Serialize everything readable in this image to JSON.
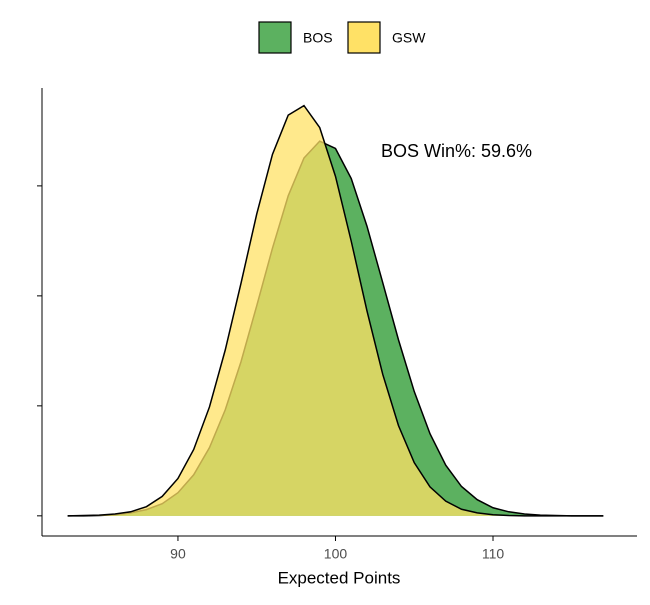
{
  "chart_data": {
    "type": "density",
    "x_label": "Expected Points",
    "annotation": "BOS Win%: 59.6%",
    "x": [
      83,
      84,
      85,
      86,
      87,
      88,
      89,
      90,
      91,
      92,
      93,
      94,
      95,
      96,
      97,
      98,
      99,
      100,
      101,
      102,
      103,
      104,
      105,
      106,
      107,
      108,
      109,
      110,
      111,
      112,
      113,
      114,
      115,
      116,
      117
    ],
    "series": [
      {
        "name": "BOS",
        "color": "#5cb160",
        "values": [
          0,
          0,
          0.0001,
          0.0003,
          0.0008,
          0.0017,
          0.0033,
          0.0063,
          0.0112,
          0.0186,
          0.0289,
          0.042,
          0.0573,
          0.073,
          0.0873,
          0.0976,
          0.1022,
          0.1002,
          0.092,
          0.079,
          0.0636,
          0.048,
          0.0339,
          0.0224,
          0.0138,
          0.008,
          0.0044,
          0.0022,
          0.0011,
          0.0005,
          0.0002,
          0.0001,
          0,
          0,
          0
        ]
      },
      {
        "name": "GSW",
        "color": "#ffe166",
        "values": [
          0,
          0.0001,
          0.0002,
          0.0005,
          0.0011,
          0.0025,
          0.0053,
          0.0102,
          0.0181,
          0.0297,
          0.0452,
          0.0634,
          0.0823,
          0.0986,
          0.1093,
          0.1119,
          0.1059,
          0.0926,
          0.0749,
          0.0559,
          0.0386,
          0.0246,
          0.0145,
          0.0079,
          0.004,
          0.0018,
          0.0008,
          0.0003,
          0.0001,
          0,
          0,
          0,
          0,
          0,
          0
        ]
      }
    ],
    "xlim": [
      81.37,
      119.14
    ],
    "xticks": [
      90,
      100,
      110
    ],
    "ylim": [
      -0.0055,
      0.1167
    ],
    "yticks": [
      0,
      0.03,
      0.06,
      0.09
    ],
    "legend": "top"
  }
}
